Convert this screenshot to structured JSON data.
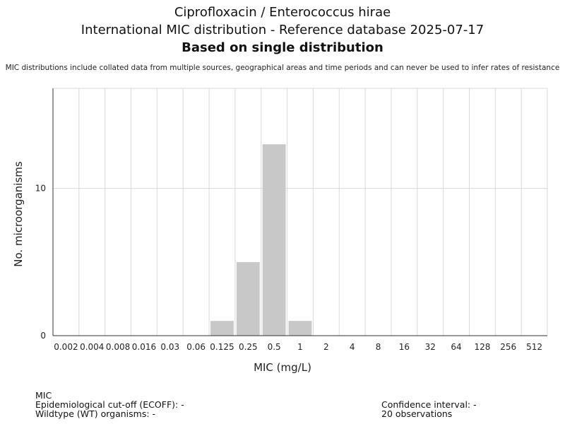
{
  "chart_data": {
    "type": "bar",
    "title": "Ciprofloxacin / Enterococcus hirae",
    "subtitle": "International MIC distribution - Reference database 2025-07-17",
    "subtitle2": "Based on single distribution",
    "note": "MIC distributions include collated data from multiple sources, geographical areas and time periods and can never be used to infer rates of resistance",
    "xlabel": "MIC (mg/L)",
    "ylabel": "No. microorganisms",
    "categories": [
      "0.002",
      "0.004",
      "0.008",
      "0.016",
      "0.03",
      "0.06",
      "0.125",
      "0.25",
      "0.5",
      "1",
      "2",
      "4",
      "8",
      "16",
      "32",
      "64",
      "128",
      "256",
      "512"
    ],
    "values": [
      0,
      0,
      0,
      0,
      0,
      0,
      1,
      5,
      13,
      1,
      0,
      0,
      0,
      0,
      0,
      0,
      0,
      0,
      0
    ],
    "ylim": [
      0,
      16.8
    ],
    "yticks": [
      0,
      10
    ],
    "grid": true,
    "bar_color": "#c8c8c8"
  },
  "footer": {
    "mic_label": "MIC",
    "ecoff": "Epidemiological cut-off (ECOFF): -",
    "wt": "Wildtype (WT) organisms:  -",
    "ci": "Confidence interval: -",
    "observations": "20 observations"
  }
}
